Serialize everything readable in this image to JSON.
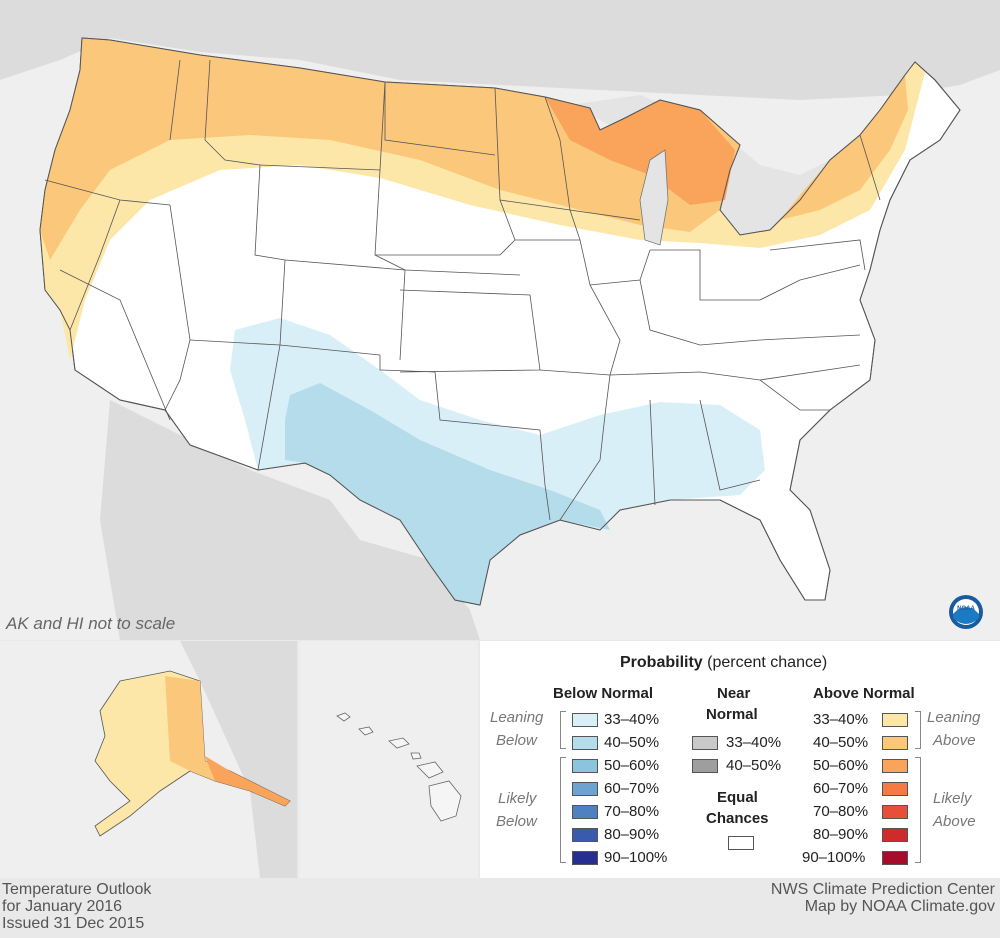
{
  "map": {
    "scale_note": "AK and HI not to scale"
  },
  "legend": {
    "title_bold": "Probability",
    "title_rest": " (percent chance)",
    "below_header": "Below Normal",
    "near_header_1": "Near",
    "near_header_2": "Normal",
    "above_header": "Above Normal",
    "leaning_below_1": "Leaning",
    "leaning_below_2": "Below",
    "likely_below_1": "Likely",
    "likely_below_2": "Below",
    "leaning_above_1": "Leaning",
    "leaning_above_2": "Above",
    "likely_above_1": "Likely",
    "likely_above_2": "Above",
    "equal_1": "Equal",
    "equal_2": "Chances",
    "below": [
      {
        "label": "33–40%",
        "color": "#d9eff7"
      },
      {
        "label": "40–50%",
        "color": "#b4dcea"
      },
      {
        "label": "50–60%",
        "color": "#8cc3dd"
      },
      {
        "label": "60–70%",
        "color": "#6ca3d1"
      },
      {
        "label": "70–80%",
        "color": "#4f80c2"
      },
      {
        "label": "80–90%",
        "color": "#3a5aae"
      },
      {
        "label": "90–100%",
        "color": "#262e90"
      }
    ],
    "near": [
      {
        "label": "33–40%",
        "color": "#c9c9c9"
      },
      {
        "label": "40–50%",
        "color": "#9e9e9e"
      }
    ],
    "above": [
      {
        "label": "33–40%",
        "color": "#fde7a8"
      },
      {
        "label": "40–50%",
        "color": "#fbc77a"
      },
      {
        "label": "50–60%",
        "color": "#f9a35b"
      },
      {
        "label": "60–70%",
        "color": "#f47a46"
      },
      {
        "label": "70–80%",
        "color": "#e84f38"
      },
      {
        "label": "80–90%",
        "color": "#cf2a2c"
      },
      {
        "label": "90–100%",
        "color": "#a60d2a"
      }
    ],
    "equal_color": "#ffffff"
  },
  "footer": {
    "left_1": "Temperature Outlook",
    "left_2": "for January 2016",
    "left_3": "Issued 31 Dec 2015",
    "right_1": "NWS Climate Prediction Center",
    "right_2": "Map by NOAA Climate.gov"
  },
  "logo": {
    "text": "NOAA",
    "icon": "noaa-logo-icon"
  }
}
